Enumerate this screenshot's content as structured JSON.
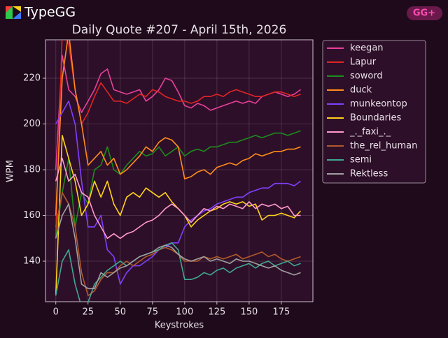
{
  "app": {
    "name": "TypeGG",
    "badge": "GG+"
  },
  "chart_data": {
    "type": "line",
    "title": "Daily Quote #207 - April 15th, 2026",
    "x_label": "Keystrokes",
    "y_label": "WPM",
    "x": [
      0,
      5,
      10,
      15,
      20,
      25,
      30,
      35,
      40,
      45,
      50,
      55,
      60,
      65,
      70,
      75,
      80,
      85,
      90,
      95,
      100,
      105,
      110,
      115,
      120,
      125,
      130,
      135,
      140,
      145,
      150,
      155,
      160,
      165,
      170,
      175,
      180,
      185,
      190
    ],
    "series": [
      {
        "name": "keegan",
        "color": "#e8409a",
        "values": [
          180,
          230,
          215,
          212,
          205,
          210,
          215,
          222,
          224,
          215,
          214,
          213,
          214,
          215,
          210,
          212,
          215,
          220,
          219,
          214,
          208,
          207,
          209,
          208,
          206,
          207,
          208,
          209,
          210,
          209,
          210,
          209,
          212,
          213,
          214,
          213,
          212,
          213,
          215
        ]
      },
      {
        "name": "Lapur",
        "color": "#e02424",
        "values": [
          150,
          240,
          235,
          215,
          200,
          205,
          212,
          218,
          214,
          210,
          210,
          209,
          211,
          213,
          212,
          215,
          214,
          212,
          211,
          210,
          210,
          209,
          210,
          212,
          212,
          213,
          212,
          214,
          215,
          214,
          213,
          212,
          212,
          213,
          214,
          214,
          213,
          212,
          213
        ]
      },
      {
        "name": "soword",
        "color": "#1c8c1c",
        "values": [
          150,
          170,
          185,
          155,
          170,
          165,
          180,
          182,
          190,
          180,
          178,
          182,
          185,
          188,
          186,
          187,
          190,
          186,
          188,
          190,
          186,
          188,
          189,
          188,
          190,
          190,
          191,
          192,
          192,
          193,
          194,
          195,
          194,
          195,
          196,
          196,
          195,
          196,
          197
        ]
      },
      {
        "name": "duck",
        "color": "#ff8c1a",
        "values": [
          160,
          220,
          240,
          215,
          200,
          182,
          185,
          188,
          182,
          185,
          178,
          180,
          183,
          186,
          190,
          188,
          192,
          194,
          193,
          190,
          176,
          177,
          179,
          180,
          178,
          181,
          182,
          183,
          182,
          184,
          185,
          187,
          186,
          187,
          188,
          188,
          189,
          189,
          190
        ]
      },
      {
        "name": "munkeontop",
        "color": "#8040ff",
        "values": [
          200,
          205,
          210,
          200,
          175,
          155,
          155,
          160,
          145,
          142,
          130,
          135,
          138,
          138,
          140,
          142,
          145,
          146,
          148,
          148,
          155,
          158,
          160,
          162,
          163,
          165,
          166,
          167,
          168,
          168,
          170,
          171,
          172,
          172,
          174,
          174,
          174,
          173,
          175
        ]
      },
      {
        "name": "Boundaries",
        "color": "#ffd21a",
        "values": [
          125,
          195,
          185,
          175,
          160,
          165,
          175,
          168,
          175,
          165,
          160,
          168,
          170,
          168,
          172,
          170,
          168,
          170,
          166,
          163,
          160,
          155,
          158,
          160,
          162,
          163,
          165,
          166,
          165,
          166,
          164,
          165,
          158,
          160,
          160,
          161,
          160,
          159,
          162
        ]
      },
      {
        "name": "_._faxi_._",
        "color": "#ff99cc",
        "values": [
          175,
          185,
          175,
          178,
          170,
          168,
          160,
          155,
          150,
          152,
          150,
          152,
          153,
          155,
          157,
          158,
          160,
          163,
          165,
          163,
          160,
          157,
          160,
          163,
          162,
          164,
          163,
          165,
          164,
          163,
          166,
          163,
          165,
          164,
          165,
          163,
          164,
          160,
          160
        ]
      },
      {
        "name": "the_rel_human",
        "color": "#b05a2a",
        "values": [
          155,
          170,
          165,
          155,
          135,
          125,
          127,
          132,
          135,
          135,
          138,
          140,
          138,
          140,
          142,
          143,
          145,
          146,
          145,
          143,
          140,
          140,
          140,
          142,
          141,
          142,
          141,
          142,
          143,
          141,
          142,
          143,
          144,
          142,
          143,
          141,
          140,
          141,
          142
        ]
      },
      {
        "name": "semi",
        "color": "#40a890",
        "values": [
          125,
          140,
          145,
          130,
          120,
          122,
          130,
          133,
          136,
          138,
          140,
          138,
          140,
          142,
          143,
          144,
          145,
          147,
          148,
          145,
          132,
          132,
          133,
          135,
          134,
          136,
          137,
          135,
          137,
          138,
          139,
          137,
          139,
          140,
          138,
          139,
          140,
          138,
          139
        ]
      },
      {
        "name": "Rektless",
        "color": "#a0a0a0",
        "values": [
          150,
          160,
          165,
          150,
          130,
          128,
          128,
          135,
          133,
          135,
          137,
          138,
          140,
          142,
          143,
          144,
          146,
          147,
          146,
          143,
          141,
          140,
          141,
          142,
          140,
          141,
          140,
          139,
          141,
          140,
          140,
          139,
          138,
          137,
          138,
          136,
          135,
          134,
          135
        ]
      }
    ],
    "xlim": [
      -8,
      199.5
    ],
    "ylim": [
      122.3,
      236.8
    ],
    "xticks": [
      0,
      25,
      50,
      75,
      100,
      125,
      150,
      175
    ],
    "yticks": [
      140,
      160,
      180,
      200,
      220
    ],
    "grid": true,
    "legend": "right"
  }
}
